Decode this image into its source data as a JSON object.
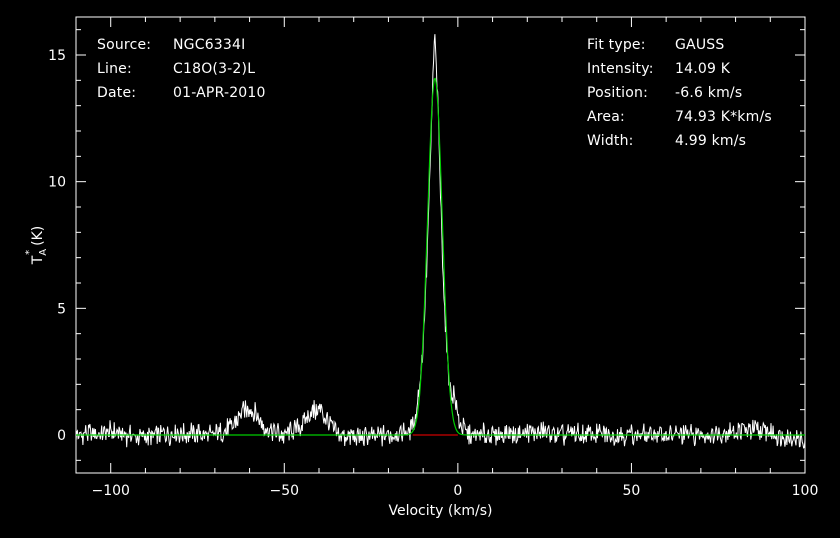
{
  "header_left": [
    {
      "key": "Source:",
      "value": "NGC6334I"
    },
    {
      "key": "Line:",
      "value": "C18O(3-2)L"
    },
    {
      "key": "Date:",
      "value": "01-APR-2010"
    }
  ],
  "header_right": [
    {
      "key": "Fit type:",
      "value": "GAUSS"
    },
    {
      "key": "Intensity:",
      "value": "14.09 K"
    },
    {
      "key": "Position:",
      "value": "-6.6 km/s"
    },
    {
      "key": "Area:",
      "value": "74.93 K*km/s"
    },
    {
      "key": "Width:",
      "value": "4.99 km/s"
    }
  ],
  "colors": {
    "background": "#000000",
    "spectrum": "#ffffff",
    "fit": "#00cc00",
    "baseline": "#cc0000",
    "axes": "#ffffff"
  },
  "chart_data": {
    "type": "line",
    "title": "",
    "xlabel": "Velocity (km/s)",
    "ylabel": "T_A* (K)",
    "xlim": [
      -110,
      100
    ],
    "ylim": [
      -1.5,
      16.5
    ],
    "x_ticks": [
      -100,
      -50,
      0,
      50,
      100
    ],
    "x_tick_labels": [
      "−100",
      "−50",
      "0",
      "50",
      "100"
    ],
    "y_ticks": [
      0,
      5,
      10,
      15
    ],
    "y_tick_labels": [
      "0",
      "5",
      "10",
      "15"
    ],
    "x_minor_step": 10,
    "y_minor_step": 1,
    "grid": false,
    "legend": "none",
    "series": [
      {
        "name": "",
        "role": "spectrum",
        "x": [
          -110,
          -100,
          -90,
          -80,
          -70,
          -65,
          -62,
          -60,
          -58,
          -55,
          -50,
          -45,
          -42,
          -40,
          -38,
          -35,
          -30,
          -20,
          -14,
          -12,
          -10,
          -9,
          -8,
          -7.5,
          -7,
          -6.6,
          -6,
          -5.5,
          -5,
          -4,
          -3,
          -2,
          -1,
          0,
          1,
          3,
          10,
          20,
          30,
          50,
          70,
          85,
          100
        ],
        "y": [
          0,
          0.1,
          -0.1,
          0.1,
          0,
          0.3,
          0.9,
          1.1,
          0.8,
          0.2,
          0,
          0.4,
          0.9,
          1.0,
          0.7,
          0,
          -0.1,
          0,
          0.1,
          0.8,
          3.5,
          6.5,
          10.5,
          12.8,
          14.8,
          15.7,
          14.0,
          12.0,
          9.5,
          5.5,
          3.0,
          1.6,
          1.6,
          0.8,
          0.3,
          0,
          0,
          0.1,
          0,
          0,
          0,
          0.2,
          -0.2
        ]
      },
      {
        "name": "",
        "role": "fit",
        "model": "gauss",
        "amplitude": 14.09,
        "center": -6.6,
        "fwhm": 4.99,
        "x_range": [
          -110,
          100
        ]
      },
      {
        "name": "",
        "role": "baseline",
        "x": [
          -13,
          0
        ],
        "y": [
          0,
          0
        ]
      }
    ]
  }
}
